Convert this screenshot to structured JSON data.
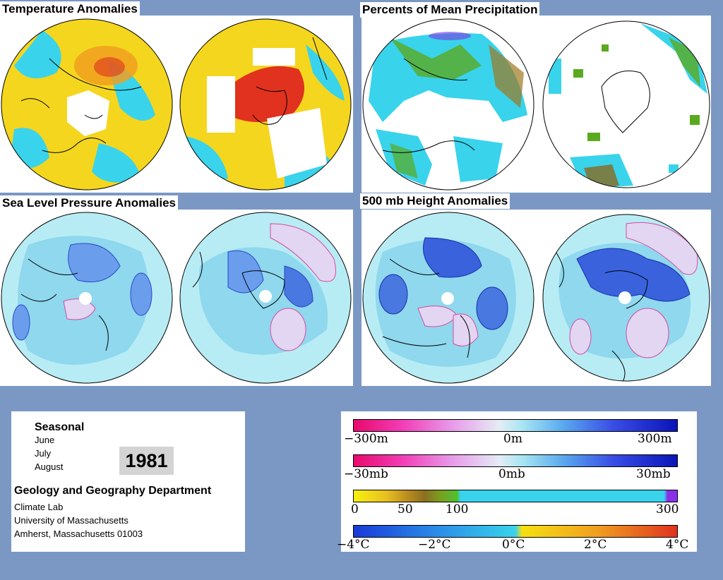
{
  "panels": {
    "temperature": "Temperature Anomalies",
    "precipitation": "Percents of Mean Precipitation",
    "slp": "Sea Level Pressure Anomalies",
    "height500": "500 mb Height Anomalies"
  },
  "info": {
    "seasonal": "Seasonal",
    "months": [
      "June",
      "July",
      "August"
    ],
    "year": "1981",
    "department": "Geology and Geography Department",
    "lab": "Climate Lab",
    "university": "University of Massachusetts",
    "address": "Amherst, Massachusetts 01003"
  },
  "legends": {
    "height": [
      "−300m",
      "0m",
      "300m"
    ],
    "pressure": [
      "−30mb",
      "0mb",
      "30mb"
    ],
    "precip": [
      "0",
      "50",
      "100",
      "300"
    ],
    "temp": [
      "−4°C",
      "−2°C",
      "0°C",
      "2°C",
      "4°C"
    ]
  },
  "colors": {
    "background": "#7b98c4",
    "ocean_cyan": "#39d3ec",
    "anomaly_yellow": "#f4d61e",
    "warm_red": "#e0321e",
    "light_blue": "#b8ecf5",
    "blue_contour": "#5f86e8",
    "pink_contour": "#d64aa0"
  }
}
